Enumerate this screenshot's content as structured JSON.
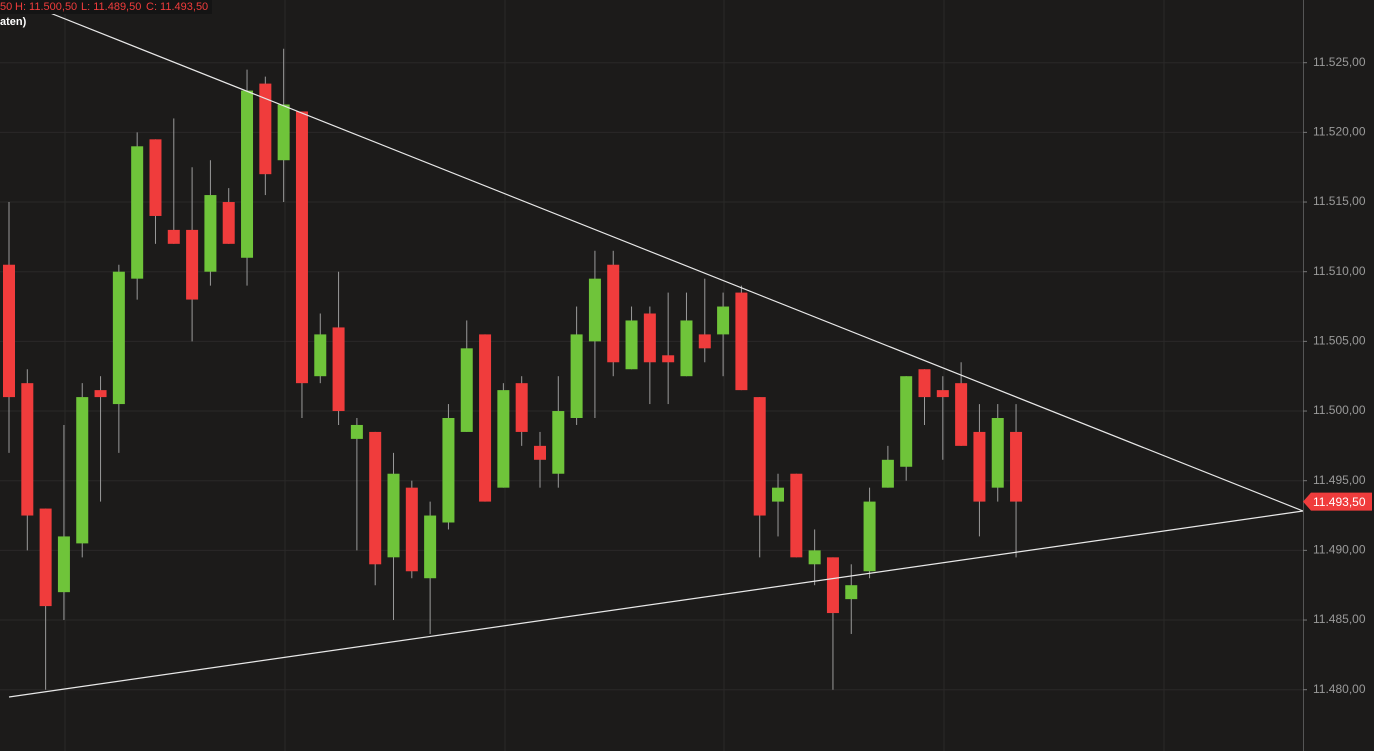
{
  "chart_data": {
    "type": "candlestick",
    "header": {
      "open_fragment": "50",
      "high": "H: 11.500,50",
      "low": "L: 11.489,50",
      "close": "C: 11.493,50",
      "subtitle_fragment": "aten)"
    },
    "open": [
      11510.5,
      11502,
      11493,
      11487,
      11490.5,
      11501.5,
      11500.5,
      11509.5,
      11519.5,
      11513,
      11513,
      11510,
      11515,
      11511,
      11523.5,
      11518,
      11521.5,
      11502.5,
      11506,
      11498,
      11498.5,
      11489.5,
      11494.5,
      11488,
      11492,
      11498.5,
      11505.5,
      11494.5,
      11502,
      11497.5,
      11495.5,
      11499.5,
      11505,
      11510.5,
      11503,
      11507,
      11504,
      11502.5,
      11505.5,
      11505.5,
      11508.5,
      11501,
      11493.5,
      11495.5,
      11489,
      11489.5,
      11486.5,
      11488.5,
      11494.5,
      11496,
      11503,
      11501.5,
      11502,
      11498.5,
      11494.5,
      11498.5
    ],
    "high": [
      11515,
      11503,
      11493,
      11499,
      11502,
      11502.5,
      11510.5,
      11520,
      11519.5,
      11521,
      11517.5,
      11518,
      11516,
      11524.5,
      11524,
      11526,
      11521.5,
      11507,
      11510,
      11499.5,
      11498.5,
      11497,
      11495,
      11493.5,
      11500.5,
      11506.5,
      11505.5,
      11502,
      11502.5,
      11498.5,
      11502.5,
      11507.5,
      11511.5,
      11511.5,
      11507.5,
      11507.5,
      11508.5,
      11508.5,
      11509.5,
      11508.5,
      11509,
      11501,
      11495.5,
      11495.5,
      11491.5,
      11489.5,
      11489,
      11494.5,
      11497.5,
      11502.5,
      11503,
      11502.5,
      11503.5,
      11500.5,
      11500.5,
      11500.5
    ],
    "low": [
      11497,
      11490,
      11480,
      11485,
      11489.5,
      11493.5,
      11497,
      11508,
      11512,
      11512,
      11505,
      11509,
      11512,
      11509,
      11515.5,
      11515,
      11499.5,
      11502,
      11499,
      11490,
      11487.5,
      11485,
      11488,
      11484,
      11491.5,
      11498.5,
      11493.5,
      11494.5,
      11497.5,
      11494.5,
      11494.5,
      11499,
      11499.5,
      11502.5,
      11503,
      11500.5,
      11500.5,
      11502.5,
      11503.5,
      11502.5,
      11501.5,
      11489.5,
      11491,
      11489.5,
      11487.5,
      11480,
      11484,
      11488,
      11494.5,
      11495,
      11499,
      11496.5,
      11497.5,
      11491,
      11493.5,
      11489.5
    ],
    "close": [
      11501,
      11492.5,
      11486,
      11491,
      11501,
      11501,
      11510,
      11519,
      11514,
      11512,
      11508,
      11515.5,
      11512,
      11523,
      11517,
      11522,
      11502,
      11505.5,
      11500,
      11499,
      11489,
      11495.5,
      11488.5,
      11492.5,
      11499.5,
      11504.5,
      11493.5,
      11501.5,
      11498.5,
      11496.5,
      11500,
      11505.5,
      11509.5,
      11503.5,
      11506.5,
      11503.5,
      11503.5,
      11506.5,
      11504.5,
      11507.5,
      11501.5,
      11492.5,
      11494.5,
      11489.5,
      11490,
      11485.5,
      11487.5,
      11493.5,
      11496.5,
      11502.5,
      11501,
      11501,
      11497.5,
      11493.5,
      11499.5,
      11493.5
    ],
    "up_color": "#6fc43a",
    "down_color": "#f03c3c",
    "ylim": [
      11475.6,
      11529.5
    ],
    "yticks": [
      {
        "value": 11480,
        "label": "11.480,00"
      },
      {
        "value": 11485,
        "label": "11.485,00"
      },
      {
        "value": 11490,
        "label": "11.490,00"
      },
      {
        "value": 11495,
        "label": "11.495,00"
      },
      {
        "value": 11500,
        "label": "11.500,00"
      },
      {
        "value": 11505,
        "label": "11.505,00"
      },
      {
        "value": 11510,
        "label": "11.510,00"
      },
      {
        "value": 11515,
        "label": "11.515,00"
      },
      {
        "value": 11520,
        "label": "11.520,00"
      },
      {
        "value": 11525,
        "label": "11.525,00"
      }
    ],
    "last_price": {
      "value": 11493.5,
      "label": "11.493,50"
    },
    "grid": true
  }
}
